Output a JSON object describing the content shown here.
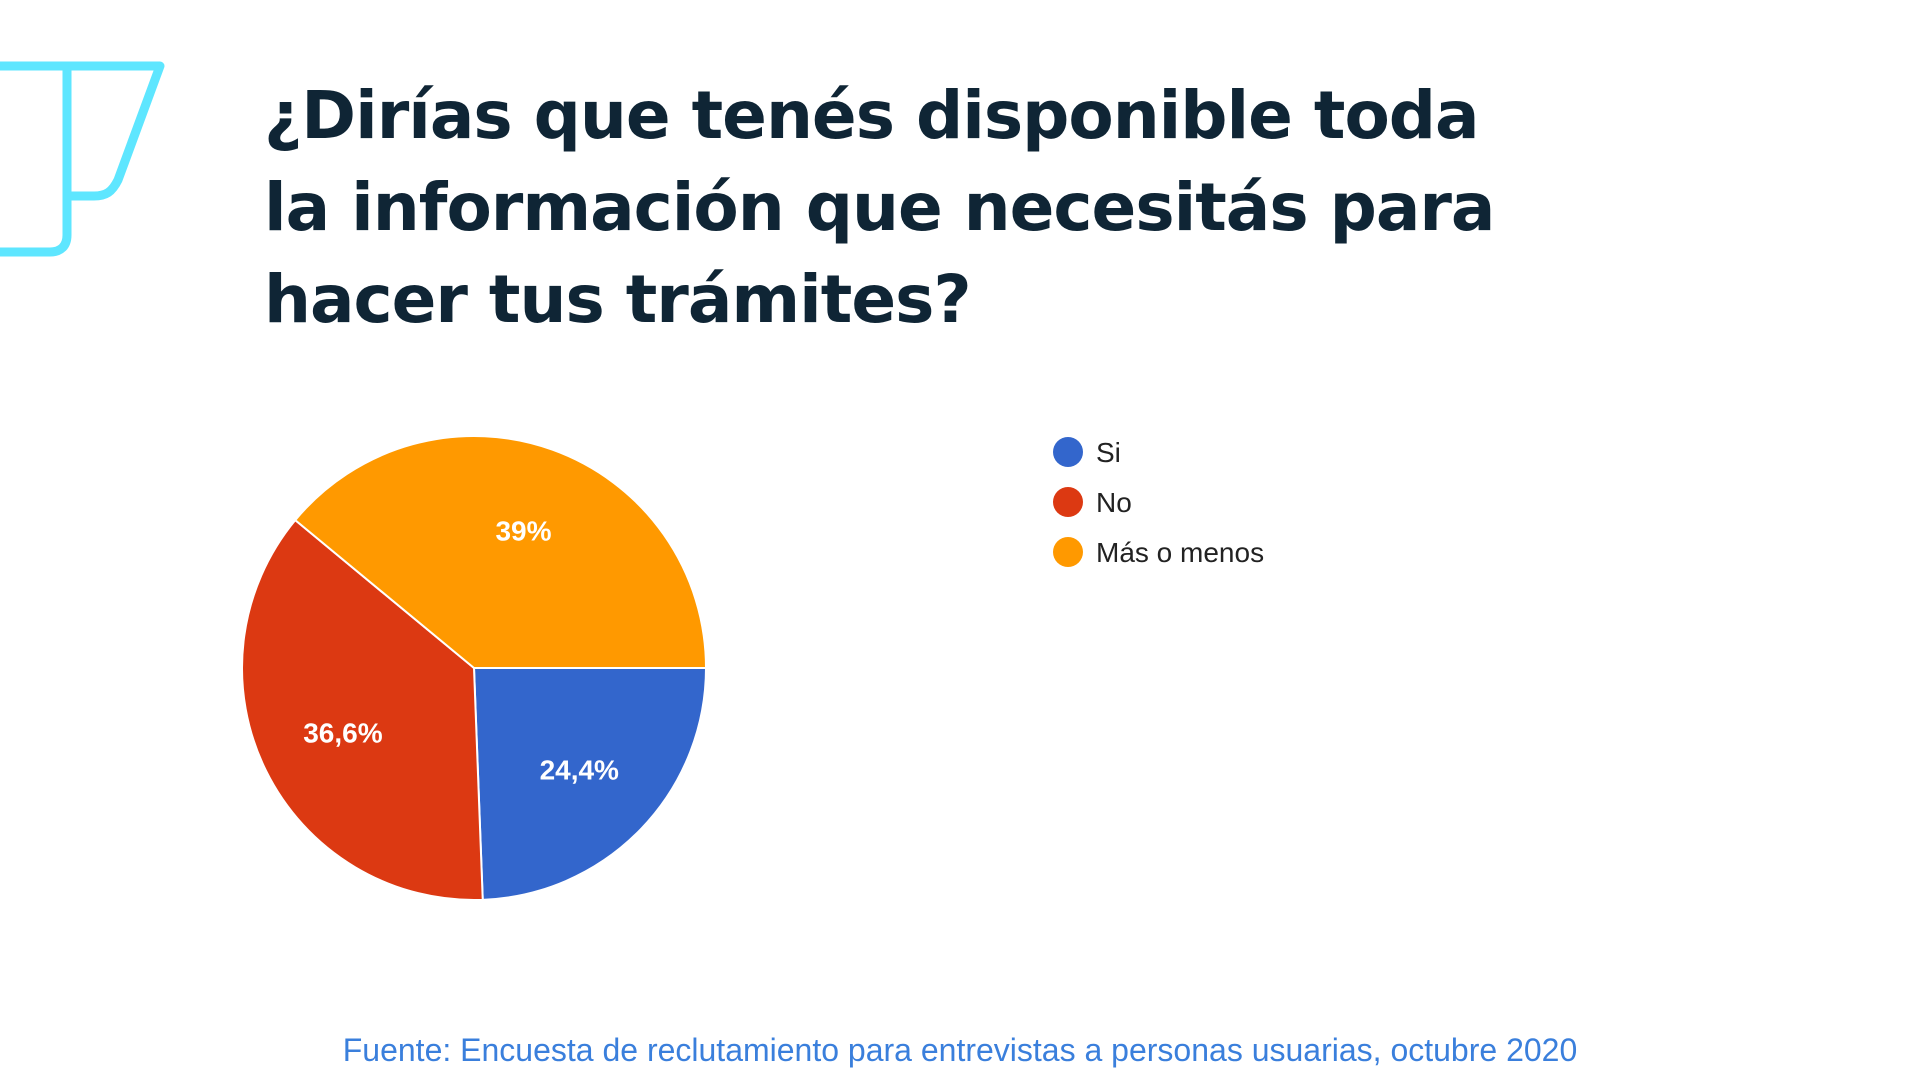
{
  "title_lines": [
    "¿Dirías que tenés disponible toda",
    "la información que necesitás para",
    "hacer tus trámites?"
  ],
  "source": "Fuente: Encuesta de reclutamiento para entrevistas a personas usuarias, octubre 2020",
  "logo_color": "#5ee6ff",
  "chart_data": {
    "type": "pie",
    "slices": [
      {
        "name": "Si",
        "value": 24.4,
        "label": "24,4%",
        "color": "#3366cc"
      },
      {
        "name": "No",
        "value": 36.6,
        "label": "36,6%",
        "color": "#dc3912"
      },
      {
        "name": "Más o menos",
        "value": 39,
        "label": "39%",
        "color": "#ff9900"
      }
    ],
    "legend_position": "right"
  }
}
